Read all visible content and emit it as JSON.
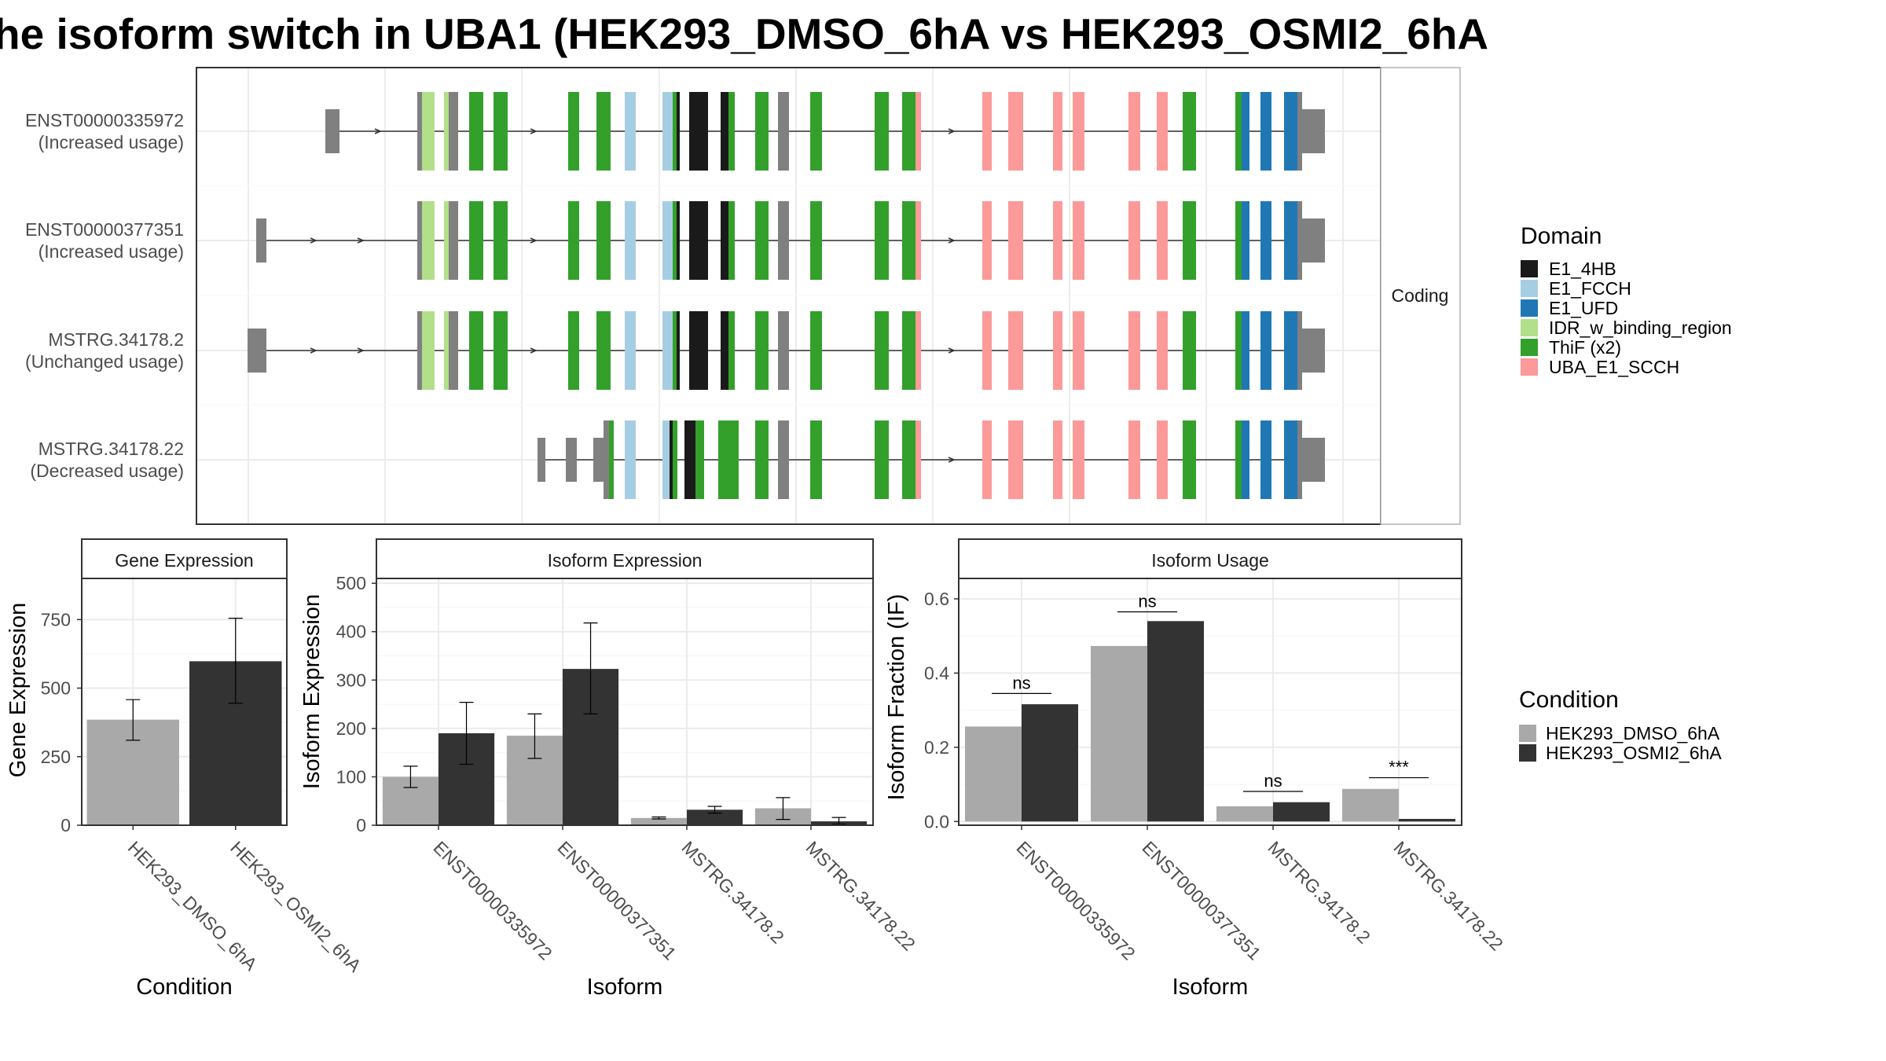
{
  "title": "he isoform switch in UBA1 (HEK293_DMSO_6hA vs HEK293_OSMI2_6hA",
  "colors": {
    "E1_4HB": "#1a1a1a",
    "E1_FCCH": "#a6cee3",
    "E1_UFD": "#1f78b4",
    "IDR_w_binding_region": "#b2df8a",
    "ThiF (x2)": "#33a02c",
    "UBA_E1_SCCH": "#fb9a99",
    "utr": "#808080",
    "dmso": "#a9a9a9",
    "osmi": "#333333"
  },
  "structure": {
    "strip_label": "Coding",
    "transcripts": [
      {
        "id": "ENST00000335972",
        "usage": "(Increased usage)"
      },
      {
        "id": "ENST00000377351",
        "usage": "(Increased usage)"
      },
      {
        "id": "MSTRG.34178.2",
        "usage": "(Unchanged usage)"
      },
      {
        "id": "MSTRG.34178.22",
        "usage": "(Decreased usage)"
      }
    ]
  },
  "legend_domain": {
    "title": "Domain",
    "items": [
      {
        "label": "E1_4HB",
        "key": "E1_4HB"
      },
      {
        "label": "E1_FCCH",
        "key": "E1_FCCH"
      },
      {
        "label": "E1_UFD",
        "key": "E1_UFD"
      },
      {
        "label": "IDR_w_binding_region",
        "key": "IDR_w_binding_region"
      },
      {
        "label": "ThiF (x2)",
        "key": "ThiF (x2)"
      },
      {
        "label": "UBA_E1_SCCH",
        "key": "UBA_E1_SCCH"
      }
    ]
  },
  "legend_condition": {
    "title": "Condition",
    "items": [
      {
        "label": "HEK293_DMSO_6hA",
        "key": "dmso"
      },
      {
        "label": "HEK293_OSMI2_6hA",
        "key": "osmi"
      }
    ]
  },
  "chart_data": [
    {
      "type": "bar",
      "title": "Gene Expression",
      "xlabel": "Condition",
      "ylabel": "Gene Expression",
      "ylim": [
        0,
        900
      ],
      "yticks": [
        0,
        250,
        500,
        750
      ],
      "categories": [
        "HEK293_DMSO_6hA",
        "HEK293_OSMI2_6hA"
      ],
      "series": [
        {
          "values": [
            385,
            598
          ],
          "err_low": [
            310,
            445
          ],
          "err_high": [
            458,
            755
          ]
        }
      ]
    },
    {
      "type": "bar",
      "title": "Isoform Expression",
      "xlabel": "Isoform",
      "ylabel": "Isoform Expression",
      "ylim": [
        0,
        510
      ],
      "yticks": [
        0,
        100,
        200,
        300,
        400,
        500
      ],
      "categories": [
        "ENST00000335972",
        "ENST00000377351",
        "MSTRG.34178.2",
        "MSTRG.34178.22"
      ],
      "series": [
        {
          "name": "HEK293_DMSO_6hA",
          "values": [
            100,
            185,
            15,
            35
          ],
          "err_low": [
            78,
            138,
            13,
            12
          ],
          "err_high": [
            122,
            230,
            17,
            57
          ]
        },
        {
          "name": "HEK293_OSMI2_6hA",
          "values": [
            190,
            323,
            32,
            8
          ],
          "err_low": [
            126,
            230,
            25,
            2
          ],
          "err_high": [
            254,
            418,
            39,
            16
          ]
        }
      ]
    },
    {
      "type": "bar",
      "title": "Isoform Usage",
      "xlabel": "Isoform",
      "ylabel": "Isoform Fraction (IF)",
      "ylim": [
        -0.01,
        0.655
      ],
      "yticks": [
        0.0,
        0.2,
        0.4,
        0.6
      ],
      "categories": [
        "ENST00000335972",
        "ENST00000377351",
        "MSTRG.34178.2",
        "MSTRG.34178.22"
      ],
      "series": [
        {
          "name": "HEK293_DMSO_6hA",
          "values": [
            0.256,
            0.473,
            0.041,
            0.088
          ]
        },
        {
          "name": "HEK293_OSMI2_6hA",
          "values": [
            0.316,
            0.54,
            0.052,
            0.007
          ]
        }
      ],
      "significance": [
        "ns",
        "ns",
        "ns",
        "***"
      ],
      "significance_y": [
        0.345,
        0.565,
        0.081,
        0.118
      ]
    }
  ]
}
